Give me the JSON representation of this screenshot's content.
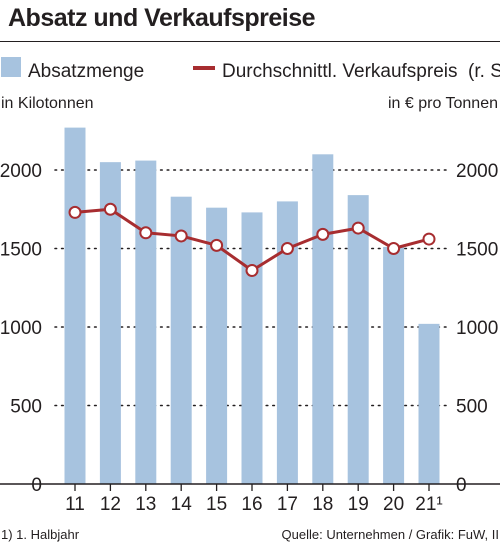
{
  "chart_data": {
    "type": "bar+line",
    "title": "Absatz und Verkaufspreise",
    "categories": [
      "11",
      "12",
      "13",
      "14",
      "15",
      "16",
      "17",
      "18",
      "19",
      "20",
      "21¹"
    ],
    "series": [
      {
        "name": "Absatzmenge",
        "type": "bar",
        "axis": "left",
        "color": "#a7c3df",
        "values": [
          2270,
          2050,
          2060,
          1830,
          1760,
          1730,
          1800,
          2100,
          1840,
          1510,
          1020
        ]
      },
      {
        "name": "Durchschnittl. Verkaufspreis  (r. S.)",
        "type": "line",
        "axis": "right",
        "color": "#a72d30",
        "values": [
          1730,
          1750,
          1600,
          1580,
          1520,
          1360,
          1500,
          1590,
          1630,
          1500,
          1560
        ]
      }
    ],
    "left_axis": {
      "label": "in Kilotonnen",
      "ylim": [
        0,
        2400
      ],
      "ticks": [
        "0",
        "500",
        "1000",
        "1500",
        "2000"
      ]
    },
    "right_axis": {
      "label": "in € pro Tonnen",
      "ylim": [
        0,
        2400
      ],
      "ticks": [
        "0",
        "500",
        "1000",
        "1500",
        "2000"
      ]
    },
    "grid": "dotted horizontal",
    "legend": "top"
  },
  "footnote": "1) 1. Halbjahr",
  "source": "Quelle: Unternehmen / Grafik: FuW, II"
}
